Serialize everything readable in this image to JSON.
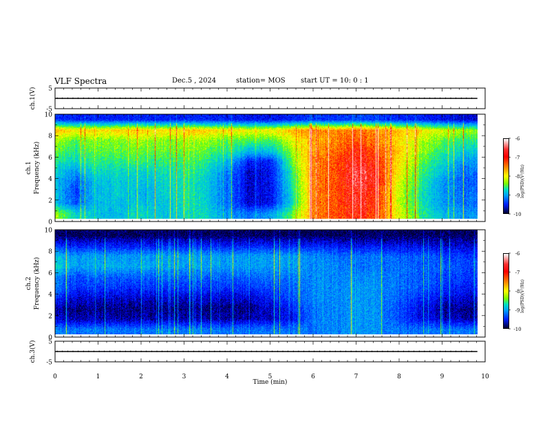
{
  "header": {
    "title": "VLF Spectra",
    "date": "Dec.5  , 2024",
    "station": "station= MOS",
    "start_ut": "start  UT  =   10: 0   : 1"
  },
  "chart_data": [
    {
      "type": "line",
      "panel": "ch1-voltage",
      "ylabel": "ch.1(V)",
      "ylim": [
        -5,
        5
      ],
      "yticks": [
        "5",
        "-5"
      ],
      "xlim": [
        0,
        10
      ],
      "series": [
        {
          "x": [
            0,
            9.82
          ],
          "values": [
            0,
            0
          ]
        }
      ]
    },
    {
      "type": "heatmap",
      "panel": "ch1-spectrogram",
      "ylabel": "ch.1\nFrequency (kHz)",
      "ylim": [
        0,
        10
      ],
      "yticks": [
        "0",
        "2",
        "4",
        "6",
        "8",
        "10"
      ],
      "xlim": [
        0,
        10
      ],
      "colorbar": {
        "label": "log(PSD)(V²/Hz)",
        "ticks": [
          "-6",
          "-7",
          "-8",
          "-9",
          "-10"
        ],
        "range": [
          -10,
          -6
        ]
      },
      "time_min": [
        0,
        0.5,
        1,
        1.5,
        2,
        2.5,
        3,
        3.5,
        4,
        4.5,
        5,
        5.5,
        6,
        6.5,
        7,
        7.5,
        8,
        8.5,
        9,
        9.5
      ],
      "freq_khz": [
        0.5,
        1.5,
        2.5,
        3.5,
        4.5,
        5.5,
        6.5,
        7.5,
        8.5,
        9.5
      ],
      "log_psd": [
        [
          -7.8,
          -8.4,
          -8.6,
          -8.6,
          -8.4,
          -8.6,
          -8.4,
          -8.4,
          -8.8,
          -9.0,
          -8.8,
          -8.0,
          -7.0,
          -6.8,
          -6.6,
          -6.8,
          -7.6,
          -8.2,
          -8.6,
          -8.8
        ],
        [
          -8.6,
          -9.1,
          -8.6,
          -8.6,
          -8.6,
          -8.6,
          -8.3,
          -8.5,
          -9.0,
          -9.6,
          -9.5,
          -8.4,
          -7.0,
          -6.8,
          -6.5,
          -6.7,
          -7.7,
          -8.3,
          -8.8,
          -9.0
        ],
        [
          -8.6,
          -9.2,
          -8.6,
          -8.5,
          -8.7,
          -8.5,
          -8.3,
          -8.5,
          -9.0,
          -9.6,
          -9.5,
          -8.4,
          -7.0,
          -6.8,
          -6.5,
          -6.7,
          -7.7,
          -8.3,
          -8.8,
          -9.0
        ],
        [
          -8.6,
          -9.1,
          -8.6,
          -8.5,
          -8.6,
          -8.5,
          -8.3,
          -8.5,
          -9.0,
          -9.6,
          -9.5,
          -8.3,
          -7.0,
          -6.8,
          -6.4,
          -6.6,
          -7.6,
          -8.2,
          -8.8,
          -9.1
        ],
        [
          -8.5,
          -8.8,
          -8.4,
          -8.4,
          -8.5,
          -8.4,
          -8.2,
          -8.4,
          -8.9,
          -9.6,
          -9.5,
          -8.2,
          -7.0,
          -6.8,
          -6.4,
          -6.6,
          -7.5,
          -8.1,
          -8.6,
          -9.0
        ],
        [
          -8.3,
          -8.4,
          -8.2,
          -8.2,
          -8.2,
          -8.2,
          -8.1,
          -8.2,
          -8.6,
          -9.4,
          -9.4,
          -8.0,
          -7.0,
          -6.8,
          -6.5,
          -6.7,
          -7.4,
          -8.0,
          -8.4,
          -8.8
        ],
        [
          -8.0,
          -8.2,
          -8.0,
          -8.0,
          -8.0,
          -8.0,
          -7.9,
          -8.0,
          -8.2,
          -8.6,
          -8.6,
          -7.8,
          -7.1,
          -6.9,
          -6.6,
          -6.8,
          -7.3,
          -7.8,
          -8.2,
          -8.5
        ],
        [
          -7.8,
          -8.0,
          -7.9,
          -7.9,
          -7.8,
          -7.9,
          -7.8,
          -7.8,
          -8.0,
          -8.1,
          -8.1,
          -7.6,
          -7.2,
          -7.0,
          -6.8,
          -7.0,
          -7.4,
          -7.7,
          -8.0,
          -8.2
        ],
        [
          -7.2,
          -7.4,
          -7.4,
          -7.3,
          -7.3,
          -7.4,
          -7.3,
          -7.3,
          -7.4,
          -7.5,
          -7.5,
          -7.2,
          -7.0,
          -7.0,
          -6.9,
          -7.0,
          -7.2,
          -7.4,
          -7.6,
          -7.8
        ],
        [
          -9.3,
          -9.4,
          -9.4,
          -9.4,
          -9.4,
          -9.4,
          -9.4,
          -9.4,
          -9.4,
          -9.5,
          -9.5,
          -9.4,
          -9.3,
          -9.3,
          -9.2,
          -9.3,
          -9.4,
          -9.4,
          -9.5,
          -9.6
        ]
      ]
    },
    {
      "type": "heatmap",
      "panel": "ch2-spectrogram",
      "ylabel": "ch.2\nFrequency (kHz)",
      "ylim": [
        0,
        10
      ],
      "yticks": [
        "0",
        "2",
        "4",
        "6",
        "8",
        "10"
      ],
      "xlim": [
        0,
        10
      ],
      "colorbar": {
        "label": "log(PSD)(V²/Hz)",
        "ticks": [
          "-6",
          "-7",
          "-8",
          "-9",
          "-10"
        ],
        "range": [
          -10,
          -6
        ]
      },
      "time_min": [
        0,
        0.5,
        1,
        1.5,
        2,
        2.5,
        3,
        3.5,
        4,
        4.5,
        5,
        5.5,
        6,
        6.5,
        7,
        7.5,
        8,
        8.5,
        9,
        9.5
      ],
      "freq_khz": [
        0.5,
        1.5,
        2.5,
        3.5,
        4.5,
        5.5,
        6.5,
        7.5,
        8.5,
        9.5
      ],
      "log_psd": [
        [
          -8.9,
          -9.0,
          -9.0,
          -9.0,
          -9.0,
          -9.0,
          -9.0,
          -9.0,
          -9.0,
          -9.0,
          -9.0,
          -9.0,
          -9.0,
          -8.9,
          -8.8,
          -8.9,
          -9.0,
          -9.0,
          -9.0,
          -9.0
        ],
        [
          -9.6,
          -9.7,
          -9.7,
          -9.7,
          -9.7,
          -9.7,
          -9.7,
          -9.7,
          -9.7,
          -9.7,
          -9.6,
          -9.5,
          -9.0,
          -8.9,
          -8.8,
          -8.9,
          -9.2,
          -9.5,
          -9.6,
          -9.7
        ],
        [
          -9.7,
          -9.8,
          -9.8,
          -9.8,
          -9.8,
          -9.8,
          -9.8,
          -9.8,
          -9.8,
          -9.8,
          -9.6,
          -9.4,
          -9.0,
          -8.9,
          -8.8,
          -8.9,
          -9.2,
          -9.5,
          -9.7,
          -9.8
        ],
        [
          -9.3,
          -9.6,
          -9.6,
          -9.6,
          -9.6,
          -9.6,
          -9.6,
          -9.6,
          -9.6,
          -9.6,
          -9.4,
          -9.2,
          -8.9,
          -8.9,
          -8.8,
          -8.9,
          -9.1,
          -9.3,
          -9.5,
          -9.6
        ],
        [
          -9.0,
          -9.3,
          -9.3,
          -9.3,
          -9.3,
          -9.3,
          -9.3,
          -9.3,
          -9.3,
          -9.3,
          -9.2,
          -9.1,
          -8.9,
          -8.9,
          -8.8,
          -8.9,
          -9.0,
          -9.1,
          -9.3,
          -9.4
        ],
        [
          -8.9,
          -9.2,
          -9.1,
          -9.1,
          -9.1,
          -9.1,
          -9.1,
          -9.1,
          -9.1,
          -9.1,
          -9.0,
          -9.0,
          -8.9,
          -8.9,
          -8.9,
          -8.9,
          -9.0,
          -9.1,
          -9.2,
          -9.3
        ],
        [
          -8.4,
          -8.8,
          -8.7,
          -8.7,
          -8.7,
          -8.8,
          -8.8,
          -8.8,
          -8.8,
          -8.8,
          -8.8,
          -8.8,
          -8.9,
          -8.9,
          -9.0,
          -9.0,
          -9.0,
          -9.1,
          -9.1,
          -9.2
        ],
        [
          -8.6,
          -8.8,
          -8.8,
          -8.8,
          -8.8,
          -8.8,
          -8.8,
          -8.8,
          -8.8,
          -8.8,
          -8.8,
          -8.8,
          -8.9,
          -9.0,
          -9.0,
          -9.0,
          -9.1,
          -9.1,
          -9.2,
          -9.3
        ],
        [
          -9.3,
          -9.4,
          -9.4,
          -9.4,
          -9.4,
          -9.4,
          -9.4,
          -9.4,
          -9.4,
          -9.4,
          -9.4,
          -9.4,
          -9.4,
          -9.4,
          -9.5,
          -9.5,
          -9.5,
          -9.5,
          -9.6,
          -9.6
        ],
        [
          -9.9,
          -9.9,
          -9.9,
          -9.9,
          -9.9,
          -9.9,
          -9.9,
          -9.9,
          -9.9,
          -9.9,
          -9.9,
          -9.9,
          -9.9,
          -9.9,
          -9.9,
          -9.9,
          -9.9,
          -9.9,
          -9.9,
          -9.9
        ]
      ]
    },
    {
      "type": "line",
      "panel": "ch3-voltage",
      "ylabel": "ch.3(V)",
      "ylim": [
        -5,
        5
      ],
      "yticks": [
        "5",
        "-5"
      ],
      "xlim": [
        0,
        10
      ],
      "xlabel": "Time  (min)",
      "xticks": [
        "0",
        "1",
        "2",
        "3",
        "4",
        "5",
        "6",
        "7",
        "8",
        "9",
        "10"
      ],
      "series": [
        {
          "x": [
            0,
            9.82
          ],
          "values": [
            0,
            0
          ]
        }
      ]
    }
  ]
}
